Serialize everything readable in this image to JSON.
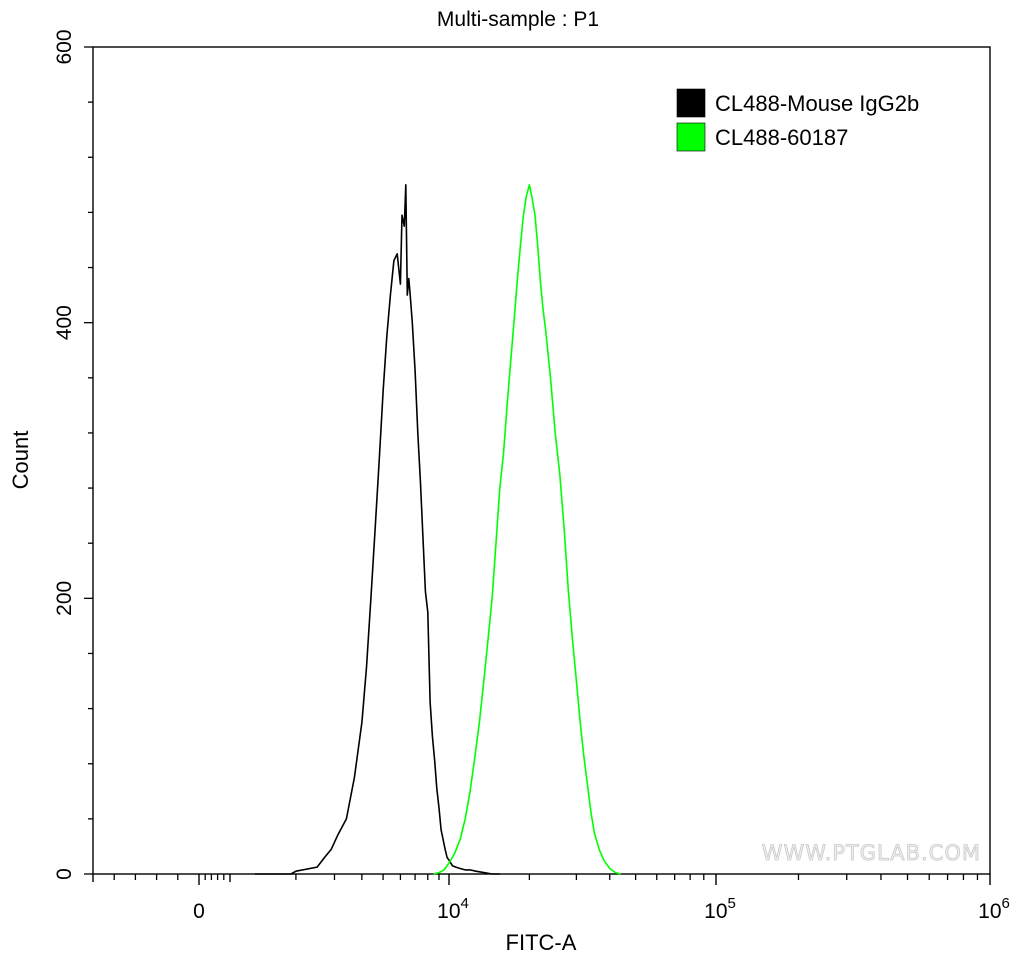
{
  "chart_data": {
    "type": "line",
    "title": "Multi-sample : P1",
    "xlabel": "FITC-A",
    "ylabel": "Count",
    "x_scale": "biexponential",
    "ylim": [
      0,
      600
    ],
    "y_ticks": [
      {
        "value": 0,
        "label": "0"
      },
      {
        "value": 200,
        "label": "200"
      },
      {
        "value": 400,
        "label": "400"
      },
      {
        "value": 600,
        "label": "600"
      }
    ],
    "x_ticks": [
      {
        "value": 0,
        "label": "0",
        "base": "",
        "exp": ""
      },
      {
        "value": 10000,
        "label": "10^4",
        "base": "10",
        "exp": "4"
      },
      {
        "value": 100000,
        "label": "10^5",
        "base": "10",
        "exp": "5"
      },
      {
        "value": 1000000,
        "label": "10^6",
        "base": "10",
        "exp": "6"
      }
    ],
    "grid": false,
    "legend_position": "top-right",
    "series": [
      {
        "name": "CL488-Mouse IgG2b",
        "color": "#000000",
        "points": [
          [
            1300,
            0
          ],
          [
            1900,
            0
          ],
          [
            2000,
            2
          ],
          [
            2500,
            5
          ],
          [
            2700,
            12
          ],
          [
            2900,
            18
          ],
          [
            3100,
            28
          ],
          [
            3400,
            40
          ],
          [
            3700,
            70
          ],
          [
            4000,
            110
          ],
          [
            4200,
            150
          ],
          [
            4400,
            200
          ],
          [
            4600,
            250
          ],
          [
            4800,
            300
          ],
          [
            5000,
            350
          ],
          [
            5200,
            390
          ],
          [
            5400,
            420
          ],
          [
            5600,
            445
          ],
          [
            5800,
            450
          ],
          [
            6000,
            428
          ],
          [
            6100,
            478
          ],
          [
            6250,
            470
          ],
          [
            6350,
            500
          ],
          [
            6450,
            420
          ],
          [
            6550,
            432
          ],
          [
            6650,
            420
          ],
          [
            6800,
            400
          ],
          [
            7000,
            365
          ],
          [
            7200,
            320
          ],
          [
            7400,
            285
          ],
          [
            7600,
            245
          ],
          [
            7800,
            205
          ],
          [
            8000,
            190
          ],
          [
            8200,
            125
          ],
          [
            8400,
            100
          ],
          [
            8600,
            82
          ],
          [
            8800,
            62
          ],
          [
            9000,
            48
          ],
          [
            9200,
            32
          ],
          [
            9400,
            25
          ],
          [
            9600,
            18
          ],
          [
            9800,
            12
          ],
          [
            10000,
            10
          ],
          [
            10300,
            6
          ],
          [
            10600,
            5
          ],
          [
            11000,
            4
          ],
          [
            11500,
            3
          ],
          [
            12000,
            3
          ],
          [
            12600,
            2
          ],
          [
            13500,
            1
          ],
          [
            14500,
            0
          ],
          [
            15500,
            0
          ]
        ]
      },
      {
        "name": "CL488-60187",
        "color": "#00ff00",
        "points": [
          [
            8500,
            0
          ],
          [
            9000,
            1
          ],
          [
            9500,
            3
          ],
          [
            10000,
            8
          ],
          [
            10500,
            15
          ],
          [
            11000,
            25
          ],
          [
            11500,
            40
          ],
          [
            12000,
            60
          ],
          [
            12500,
            85
          ],
          [
            13000,
            110
          ],
          [
            13500,
            140
          ],
          [
            14000,
            170
          ],
          [
            14500,
            200
          ],
          [
            15000,
            240
          ],
          [
            15500,
            280
          ],
          [
            16000,
            305
          ],
          [
            16500,
            340
          ],
          [
            17000,
            370
          ],
          [
            17500,
            400
          ],
          [
            18000,
            430
          ],
          [
            18500,
            455
          ],
          [
            19000,
            478
          ],
          [
            19500,
            492
          ],
          [
            20000,
            500
          ],
          [
            20500,
            490
          ],
          [
            21000,
            478
          ],
          [
            21500,
            455
          ],
          [
            22000,
            430
          ],
          [
            22500,
            410
          ],
          [
            23000,
            395
          ],
          [
            24000,
            360
          ],
          [
            25000,
            320
          ],
          [
            26000,
            290
          ],
          [
            27000,
            250
          ],
          [
            28000,
            205
          ],
          [
            29000,
            170
          ],
          [
            30000,
            140
          ],
          [
            31000,
            110
          ],
          [
            32000,
            85
          ],
          [
            33000,
            65
          ],
          [
            34000,
            45
          ],
          [
            35000,
            30
          ],
          [
            36500,
            18
          ],
          [
            38000,
            10
          ],
          [
            40000,
            4
          ],
          [
            42000,
            1
          ],
          [
            44000,
            0
          ]
        ]
      }
    ]
  },
  "watermark": "WWW.PTGLAB.COM"
}
